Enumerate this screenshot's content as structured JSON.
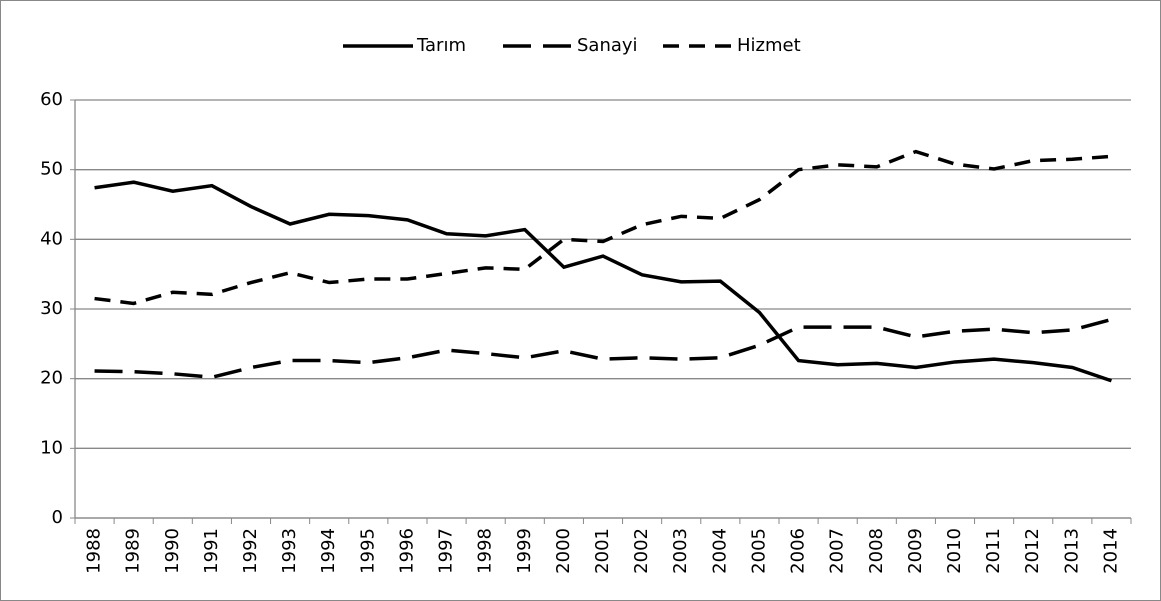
{
  "chart_data": {
    "type": "line",
    "categories": [
      "1988",
      "1989",
      "1990",
      "1991",
      "1992",
      "1993",
      "1994",
      "1995",
      "1996",
      "1997",
      "1998",
      "1999",
      "2000",
      "2001",
      "2002",
      "2003",
      "2004",
      "2005",
      "2006",
      "2007",
      "2008",
      "2009",
      "2010",
      "2011",
      "2012",
      "2013",
      "2014"
    ],
    "series": [
      {
        "name": "Tarım",
        "color": "#000000",
        "dash": "solid",
        "values": [
          47.4,
          48.2,
          46.9,
          47.7,
          44.7,
          42.2,
          43.6,
          43.4,
          42.8,
          40.8,
          40.5,
          41.4,
          36.0,
          37.6,
          34.9,
          33.9,
          34.0,
          29.5,
          22.6,
          22.0,
          22.2,
          21.6,
          22.4,
          22.8,
          22.3,
          21.6,
          19.7
        ]
      },
      {
        "name": "Sanayi",
        "color": "#000000",
        "dash": "long-dash",
        "values": [
          21.1,
          21.0,
          20.7,
          20.2,
          21.6,
          22.6,
          22.6,
          22.3,
          23.0,
          24.1,
          23.6,
          23.0,
          24.0,
          22.8,
          23.0,
          22.8,
          23.0,
          24.8,
          27.4,
          27.4,
          27.4,
          26.0,
          26.8,
          27.1,
          26.6,
          27.0,
          28.5
        ]
      },
      {
        "name": "Hizmet",
        "color": "#000000",
        "dash": "dash",
        "values": [
          31.5,
          30.8,
          32.4,
          32.1,
          33.8,
          35.2,
          33.8,
          34.3,
          34.3,
          35.1,
          35.9,
          35.7,
          40.0,
          39.7,
          42.1,
          43.3,
          43.0,
          45.7,
          50.0,
          50.7,
          50.4,
          52.6,
          50.8,
          50.1,
          51.3,
          51.5,
          51.9
        ]
      }
    ],
    "ylim": [
      0,
      60
    ],
    "yticks": [
      0,
      10,
      20,
      30,
      40,
      50,
      60
    ],
    "grid": true,
    "legend": "top"
  }
}
